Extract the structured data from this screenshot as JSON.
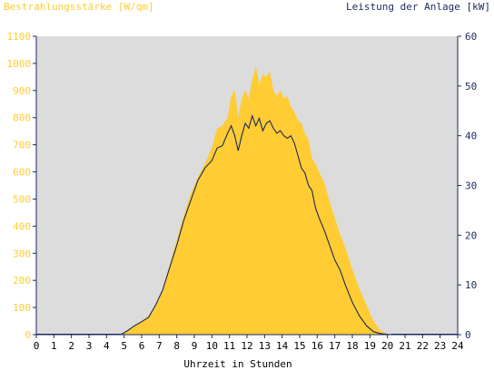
{
  "chart_data": {
    "type": "area",
    "title_left": "Bestrahlungsstärke [W/qm]",
    "title_right": "Leistung der Anlage [kW]",
    "xlabel": "Uhrzeit in Stunden",
    "x_ticks": [
      "0",
      "1",
      "2",
      "3",
      "4",
      "5",
      "6",
      "7",
      "8",
      "9",
      "10",
      "11",
      "12",
      "13",
      "14",
      "15",
      "16",
      "17",
      "18",
      "19",
      "20",
      "21",
      "22",
      "23",
      "24"
    ],
    "y_left_ticks": [
      "0",
      "100",
      "200",
      "300",
      "400",
      "500",
      "600",
      "700",
      "800",
      "900",
      "1000",
      "1100"
    ],
    "y_right_ticks": [
      "0",
      "10",
      "20",
      "30",
      "40",
      "50",
      "60"
    ],
    "xlim": [
      0,
      24
    ],
    "ylim_left": [
      0,
      1100
    ],
    "ylim_right": [
      0,
      60
    ],
    "grid": false,
    "colors": {
      "irradiance": "#ffcc33",
      "power": "#1a2a5e",
      "plot_bg": "#dcdcdc",
      "left_axis_text": "#ffcc33",
      "right_axis_text": "#1a2a5e"
    },
    "series": [
      {
        "axis": "left",
        "kind": "area",
        "x": [
          4.8,
          5.2,
          5.6,
          6.0,
          6.4,
          6.8,
          7.2,
          7.6,
          8.0,
          8.4,
          8.8,
          9.2,
          9.6,
          10.0,
          10.3,
          10.6,
          10.9,
          11.1,
          11.3,
          11.5,
          11.7,
          11.9,
          12.1,
          12.3,
          12.5,
          12.7,
          12.9,
          13.1,
          13.3,
          13.5,
          13.7,
          13.9,
          14.1,
          14.3,
          14.5,
          14.7,
          14.9,
          15.1,
          15.3,
          15.5,
          15.7,
          15.9,
          16.1,
          16.4,
          16.7,
          17.0,
          17.3,
          17.6,
          18.0,
          18.4,
          18.8,
          19.2,
          19.6,
          20.0,
          20.2
        ],
        "y": [
          0,
          15,
          35,
          50,
          70,
          110,
          170,
          260,
          350,
          440,
          520,
          580,
          630,
          690,
          760,
          770,
          800,
          880,
          900,
          800,
          870,
          900,
          870,
          940,
          990,
          920,
          960,
          950,
          970,
          900,
          880,
          900,
          870,
          880,
          840,
          820,
          790,
          780,
          740,
          720,
          650,
          630,
          600,
          560,
          490,
          430,
          370,
          320,
          240,
          170,
          110,
          50,
          15,
          3,
          0
        ]
      },
      {
        "axis": "right",
        "kind": "line",
        "x": [
          4.8,
          5.2,
          5.6,
          6.0,
          6.4,
          6.8,
          7.2,
          7.6,
          8.0,
          8.4,
          8.8,
          9.2,
          9.6,
          10.0,
          10.3,
          10.6,
          10.9,
          11.1,
          11.3,
          11.5,
          11.7,
          11.9,
          12.1,
          12.3,
          12.5,
          12.7,
          12.9,
          13.1,
          13.3,
          13.5,
          13.7,
          13.9,
          14.1,
          14.3,
          14.5,
          14.7,
          14.9,
          15.1,
          15.3,
          15.5,
          15.7,
          15.9,
          16.1,
          16.4,
          16.7,
          17.0,
          17.3,
          17.6,
          18.0,
          18.4,
          18.8,
          19.2,
          19.6,
          20.0,
          20.2
        ],
        "y": [
          0,
          0.8,
          1.8,
          2.6,
          3.5,
          6.0,
          9.0,
          13.5,
          18.0,
          23.0,
          27.0,
          31.0,
          33.5,
          35.0,
          37.5,
          38.0,
          40.5,
          42.0,
          40.0,
          37.0,
          40.0,
          42.5,
          41.5,
          44.0,
          42.0,
          43.5,
          41.0,
          42.5,
          43.0,
          41.5,
          40.5,
          41.0,
          40.0,
          39.5,
          40.0,
          38.5,
          36.0,
          33.5,
          32.5,
          30.0,
          29.0,
          25.5,
          23.5,
          21.0,
          18.0,
          15.0,
          13.0,
          10.0,
          6.5,
          3.8,
          1.8,
          0.6,
          0.2,
          0.05,
          0
        ]
      }
    ]
  }
}
